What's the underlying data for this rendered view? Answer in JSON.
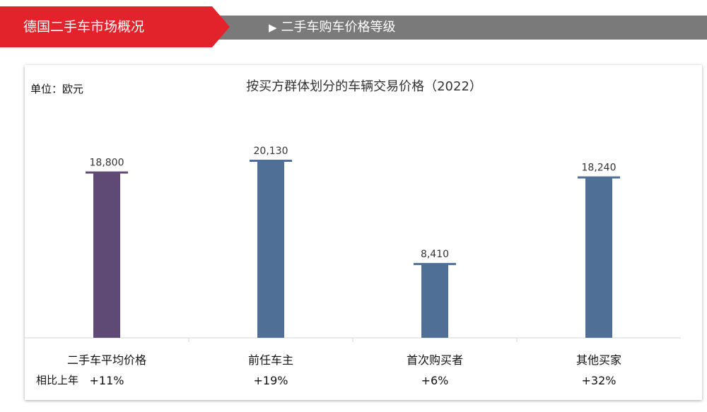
{
  "header": {
    "section_title": "德国二手车市场概况",
    "subsection_title": "二手车购车价格等级",
    "subsection_marker": "▶"
  },
  "colors": {
    "header_red": "#e3232b",
    "header_gray": "#7a7a7a",
    "bar_average": "#5e4a74",
    "bar_group": "#4f6f96"
  },
  "chart_data": {
    "type": "bar",
    "title": "按买方群体划分的车辆交易价格（2022）",
    "unit_label": "单位：欧元",
    "categories": [
      "二手车平均价格",
      "前任车主",
      "首次购买者",
      "其他买家"
    ],
    "values": [
      18800,
      20130,
      8410,
      18240
    ],
    "value_labels": [
      "18,800",
      "20,130",
      "8,410",
      "18,240"
    ],
    "yoy_label": "相比上年",
    "yoy_values": [
      "+11%",
      "+19%",
      "+6%",
      "+32%"
    ],
    "ylim": [
      0,
      22000
    ],
    "grid": false,
    "legend": "none"
  }
}
